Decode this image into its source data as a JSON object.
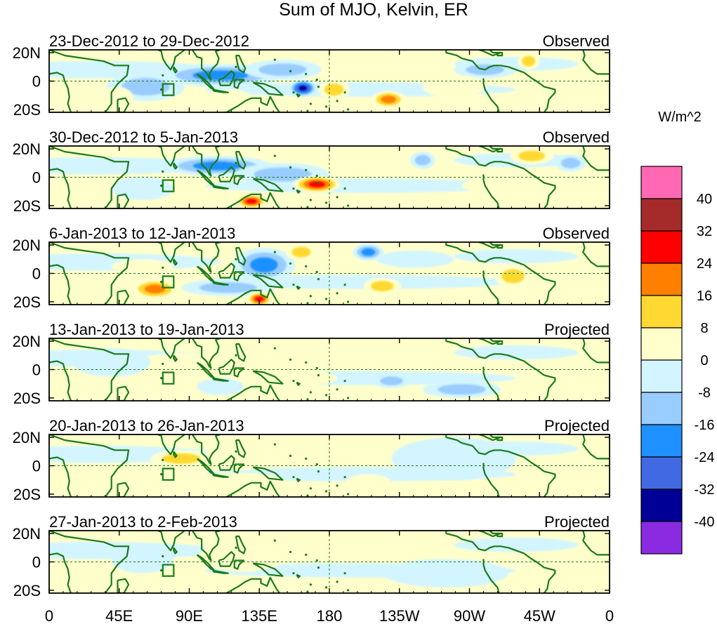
{
  "chart_data": {
    "type": "heatmap",
    "title": "Sum of MJO, Kelvin, ER",
    "colorbar": {
      "units": "W/m^2",
      "levels": [
        40,
        32,
        24,
        16,
        8,
        0,
        -8,
        -16,
        -24,
        -32,
        -40
      ],
      "colors": [
        "#ff69b4",
        "#a52a2a",
        "#ff0000",
        "#ff7f00",
        "#ffd932",
        "#ffffcc",
        "#d2f5ff",
        "#99ccff",
        "#1e90ff",
        "#4169e1",
        "#000096",
        "#8a2be2"
      ]
    },
    "x_ticks": [
      "0",
      "45E",
      "90E",
      "135E",
      "180",
      "135W",
      "90W",
      "45W",
      "0"
    ],
    "y_ticks": [
      "20N",
      "0",
      "20S"
    ],
    "land_color": "#1a7a1a",
    "panels": [
      {
        "period": "23-Dec-2012 to 29-Dec-2012",
        "status": "Observed",
        "features": [
          {
            "lon": 110,
            "lat": 4,
            "rlon": 40,
            "rlat": 8,
            "val": -20
          },
          {
            "lon": 62,
            "lat": -4,
            "rlon": 25,
            "rlat": 10,
            "val": -18
          },
          {
            "lon": 150,
            "lat": 8,
            "rlon": 25,
            "rlat": 7,
            "val": -14
          },
          {
            "lon": 163,
            "lat": -5,
            "rlon": 9,
            "rlat": 6,
            "val": -36
          },
          {
            "lon": 183,
            "lat": -6,
            "rlon": 10,
            "rlat": 7,
            "val": 14
          },
          {
            "lon": 218,
            "lat": -13,
            "rlon": 11,
            "rlat": 6,
            "val": 20
          },
          {
            "lon": 280,
            "lat": 8,
            "rlon": 20,
            "rlat": 6,
            "val": -18
          },
          {
            "lon": 308,
            "lat": 14,
            "rlon": 7,
            "rlat": 6,
            "val": 18
          },
          {
            "lon": 118,
            "lat": -12,
            "rlon": 12,
            "rlat": 6,
            "val": 10
          },
          {
            "lon": 260,
            "lat": -4,
            "rlon": 20,
            "rlat": 8,
            "val": 5
          },
          {
            "lon": 44,
            "lat": -12,
            "rlon": 10,
            "rlat": 8,
            "val": 10
          }
        ]
      },
      {
        "period": "30-Dec-2012 to 5-Jan-2013",
        "status": "Observed",
        "features": [
          {
            "lon": 108,
            "lat": 8,
            "rlon": 35,
            "rlat": 7,
            "val": -20
          },
          {
            "lon": 150,
            "lat": 2,
            "rlon": 30,
            "rlat": 8,
            "val": -14
          },
          {
            "lon": 172,
            "lat": -5,
            "rlon": 15,
            "rlat": 6,
            "val": 28
          },
          {
            "lon": 130,
            "lat": -17,
            "rlon": 10,
            "rlat": 5,
            "val": 28
          },
          {
            "lon": 310,
            "lat": 15,
            "rlon": 14,
            "rlat": 6,
            "val": 18
          },
          {
            "lon": 240,
            "lat": 12,
            "rlon": 8,
            "rlat": 6,
            "val": -18
          },
          {
            "lon": 335,
            "lat": 10,
            "rlon": 10,
            "rlat": 6,
            "val": -18
          },
          {
            "lon": 60,
            "lat": -8,
            "rlon": 20,
            "rlat": 8,
            "val": -10
          },
          {
            "lon": 290,
            "lat": -6,
            "rlon": 25,
            "rlat": 6,
            "val": 6
          }
        ]
      },
      {
        "period": "6-Jan-2013 to 12-Jan-2013",
        "status": "Observed",
        "features": [
          {
            "lon": 138,
            "lat": 6,
            "rlon": 20,
            "rlat": 12,
            "val": -20
          },
          {
            "lon": 115,
            "lat": -10,
            "rlon": 30,
            "rlat": 6,
            "val": -16
          },
          {
            "lon": 68,
            "lat": -11,
            "rlon": 15,
            "rlat": 7,
            "val": 20
          },
          {
            "lon": 135,
            "lat": -18,
            "rlon": 8,
            "rlat": 5,
            "val": 30
          },
          {
            "lon": 162,
            "lat": 15,
            "rlon": 10,
            "rlat": 6,
            "val": 14
          },
          {
            "lon": 205,
            "lat": 15,
            "rlon": 10,
            "rlat": 6,
            "val": -20
          },
          {
            "lon": 214,
            "lat": -9,
            "rlon": 12,
            "rlat": 6,
            "val": 18
          },
          {
            "lon": 298,
            "lat": -2,
            "rlon": 12,
            "rlat": 8,
            "val": 16
          },
          {
            "lon": 60,
            "lat": 5,
            "rlon": 20,
            "rlat": 5,
            "val": 10
          },
          {
            "lon": 235,
            "lat": 10,
            "rlon": 25,
            "rlat": 6,
            "val": -6
          }
        ]
      },
      {
        "period": "13-Jan-2013 to 19-Jan-2013",
        "status": "Projected",
        "features": [
          {
            "lon": 90,
            "lat": 2,
            "rlon": 40,
            "rlat": 10,
            "val": 6
          },
          {
            "lon": 150,
            "lat": -6,
            "rlon": 35,
            "rlat": 7,
            "val": 5
          },
          {
            "lon": 265,
            "lat": -14,
            "rlon": 25,
            "rlat": 6,
            "val": -14
          },
          {
            "lon": 220,
            "lat": -8,
            "rlon": 12,
            "rlat": 5,
            "val": -12
          },
          {
            "lon": 110,
            "lat": -12,
            "rlon": 15,
            "rlat": 6,
            "val": -8
          },
          {
            "lon": 40,
            "lat": 5,
            "rlon": 25,
            "rlat": 10,
            "val": -4
          }
        ]
      },
      {
        "period": "20-Jan-2013 to 26-Jan-2013",
        "status": "Projected",
        "features": [
          {
            "lon": 125,
            "lat": 7,
            "rlon": 25,
            "rlat": 10,
            "val": 10
          },
          {
            "lon": 85,
            "lat": 5,
            "rlon": 20,
            "rlat": 6,
            "val": 14
          },
          {
            "lon": 205,
            "lat": 12,
            "rlon": 12,
            "rlat": 5,
            "val": 6
          },
          {
            "lon": 205,
            "lat": -12,
            "rlon": 15,
            "rlat": 6,
            "val": 5
          },
          {
            "lon": 120,
            "lat": -10,
            "rlon": 30,
            "rlat": 5,
            "val": 6
          },
          {
            "lon": 260,
            "lat": 5,
            "rlon": 40,
            "rlat": 15,
            "val": -4
          }
        ]
      },
      {
        "period": "27-Jan-2013 to 2-Feb-2013",
        "status": "Projected",
        "features": [
          {
            "lon": 125,
            "lat": 5,
            "rlon": 28,
            "rlat": 12,
            "val": 8
          },
          {
            "lon": 100,
            "lat": -14,
            "rlon": 30,
            "rlat": 5,
            "val": 8
          },
          {
            "lon": 215,
            "lat": 12,
            "rlon": 12,
            "rlat": 5,
            "val": 6
          },
          {
            "lon": 255,
            "lat": -8,
            "rlon": 40,
            "rlat": 10,
            "val": -4
          },
          {
            "lon": 60,
            "lat": 2,
            "rlon": 20,
            "rlat": 10,
            "val": -4
          }
        ]
      }
    ]
  }
}
